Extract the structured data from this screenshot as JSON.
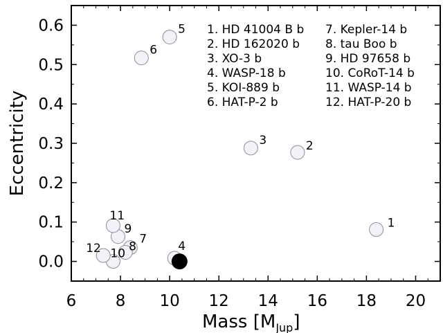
{
  "chart_data": {
    "type": "scatter",
    "xlabel": "Mass [M",
    "xlabel_sub": "Jup",
    "xlabel_end": "]",
    "ylabel": "Eccentricity",
    "xlim": [
      6,
      21
    ],
    "ylim": [
      -0.05,
      0.65
    ],
    "xticks": [
      6,
      8,
      10,
      12,
      14,
      16,
      18,
      20
    ],
    "yticks": [
      0.0,
      0.1,
      0.2,
      0.3,
      0.4,
      0.5,
      0.6
    ],
    "xtick_labels": [
      "6",
      "8",
      "10",
      "12",
      "14",
      "16",
      "18",
      "20"
    ],
    "ytick_labels": [
      "0.0",
      "0.1",
      "0.2",
      "0.3",
      "0.4",
      "0.5",
      "0.6"
    ],
    "grid": false,
    "legend_placement": "top-right",
    "colors": {
      "open_fill": "#f2f2f8",
      "open_stroke": "#8c8c9c",
      "highlight": "#000000"
    },
    "points": [
      {
        "label": "1",
        "x": 18.4,
        "y": 0.081
      },
      {
        "label": "2",
        "x": 15.2,
        "y": 0.277
      },
      {
        "label": "3",
        "x": 13.3,
        "y": 0.288
      },
      {
        "label": "4",
        "x": 10.2,
        "y": 0.008
      },
      {
        "label": "5",
        "x": 10.0,
        "y": 0.57
      },
      {
        "label": "6",
        "x": 8.85,
        "y": 0.517
      },
      {
        "label": "7",
        "x": 8.4,
        "y": 0.035
      },
      {
        "label": "8",
        "x": 8.2,
        "y": 0.023
      },
      {
        "label": "9",
        "x": 7.9,
        "y": 0.063
      },
      {
        "label": "10",
        "x": 7.7,
        "y": 0.0
      },
      {
        "label": "11",
        "x": 7.7,
        "y": 0.091
      },
      {
        "label": "12",
        "x": 7.3,
        "y": 0.015
      }
    ],
    "highlight_point": {
      "x": 10.4,
      "y": 0.0
    },
    "legend_col1": [
      "1. HD 41004 B b",
      "2. HD 162020 b",
      "3. XO-3 b",
      "4. WASP-18 b",
      "5. KOI-889 b",
      "6. HAT-P-2 b"
    ],
    "legend_col2": [
      "7. Kepler-14 b",
      "8. tau Boo b",
      "9. HD 97658 b",
      "10. CoRoT-14 b",
      "11. WASP-14 b",
      "12. HAT-P-20 b"
    ]
  }
}
